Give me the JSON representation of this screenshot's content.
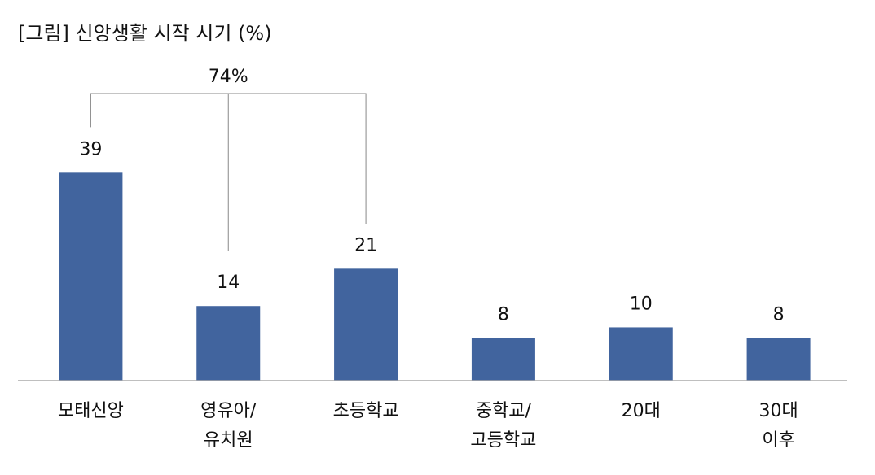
{
  "chart_data": {
    "type": "bar",
    "title": "[그림] 신앙생활 시작 시기 (%)",
    "categories": [
      "모태신앙",
      "영유아/\n유치원",
      "초등학교",
      "중학교/\n고등학교",
      "20대",
      "30대\n이후"
    ],
    "values": [
      39,
      14,
      21,
      8,
      10,
      8
    ],
    "color": "#41649e",
    "ylim": [
      0,
      45
    ],
    "annotation": "74%"
  }
}
